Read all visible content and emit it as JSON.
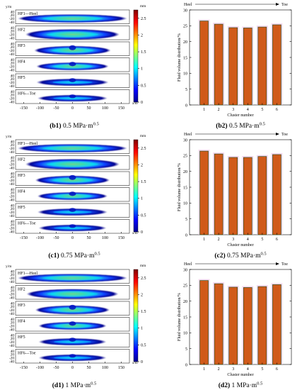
{
  "colors": {
    "bar_fill": "#d05a1a",
    "bar_edge": "#1a4a10",
    "bar_glow": "#f2c8e8",
    "colormap": [
      "#00008f",
      "#0000ff",
      "#00ffff",
      "#ffff00",
      "#ff0000",
      "#800000"
    ],
    "icons": [
      "colorbar",
      "arrow-right"
    ]
  },
  "rows": [
    {
      "map": {
        "caption_bold": "(b1)",
        "caption_text": " 0.5 MPa·m",
        "caption_sup": "0.5",
        "y_unit": "y/m",
        "x_unit": "x/m",
        "y_ticks": [
          "40",
          "20",
          "-20",
          "-40"
        ],
        "x_ticks": [
          "-150",
          "-100",
          "-50",
          "0",
          "50",
          "100",
          "150"
        ],
        "panels": [
          "HF1—Heel",
          "HF2",
          "HF3",
          "HF4",
          "HF5",
          "HF6—Toe"
        ],
        "colorbar_unit": "mm",
        "colorbar_ticks": [
          "2.5",
          "2",
          "1.5",
          "1",
          "0.5",
          "0"
        ]
      },
      "chart": {
        "caption_bold": "(b2)",
        "caption_text": " 0.5 MPa·m",
        "caption_sup": "0.5",
        "heel": "Heel",
        "toe": "Toe"
      }
    },
    {
      "map": {
        "caption_bold": "(c1)",
        "caption_text": " 0.75 MPa·m",
        "caption_sup": "0.5",
        "y_unit": "y/m",
        "x_unit": "x/m",
        "y_ticks": [
          "40",
          "20",
          "-20",
          "-40"
        ],
        "x_ticks": [
          "-150",
          "-100",
          "-50",
          "0",
          "50",
          "100",
          "150"
        ],
        "panels": [
          "HF1—Heel",
          "HF2",
          "HF3",
          "HF4",
          "HF5",
          "HF6—Toe"
        ],
        "colorbar_unit": "mm",
        "colorbar_ticks": [
          "2.5",
          "2",
          "1.5",
          "1",
          "0.5",
          "0"
        ]
      },
      "chart": {
        "caption_bold": "(c2)",
        "caption_text": " 0.75 MPa·m",
        "caption_sup": "0.5",
        "heel": "Heel",
        "toe": "Toe"
      }
    },
    {
      "map": {
        "caption_bold": "(d1)",
        "caption_text": " 1 MPa·m",
        "caption_sup": "0.5",
        "y_unit": "y/m",
        "x_unit": "x/m",
        "y_ticks": [
          "40",
          "20",
          "-20",
          "-40"
        ],
        "x_ticks": [
          "-150",
          "-100",
          "-50",
          "0",
          "50",
          "100",
          "150"
        ],
        "panels": [
          "HF1—Heel",
          "HF2",
          "HF3",
          "HF4",
          "HF5",
          "HF6—Toe"
        ],
        "colorbar_unit": "mm",
        "colorbar_ticks": [
          "2.5",
          "2",
          "1.5",
          "1",
          "0.5",
          "0"
        ]
      },
      "chart": {
        "caption_bold": "(d2)",
        "caption_text": " 1 MPa·m",
        "caption_sup": "0.5",
        "heel": "Heel",
        "toe": "Toe"
      }
    }
  ],
  "chart_data": [
    {
      "type": "bar",
      "categories": [
        "1",
        "2",
        "3",
        "4",
        "5",
        "6"
      ],
      "values": [
        26.5,
        25.5,
        24.4,
        24.3,
        24.6,
        25.3
      ],
      "xlabel": "Cluster number",
      "ylabel": "Fluid volume distribution/%",
      "ylim": [
        0,
        30
      ],
      "yticks": [
        "0",
        "5",
        "10",
        "15",
        "20",
        "25",
        "30"
      ],
      "grid": false
    },
    {
      "type": "bar",
      "categories": [
        "1",
        "2",
        "3",
        "4",
        "5",
        "6"
      ],
      "values": [
        26.4,
        25.5,
        24.4,
        24.4,
        24.7,
        25.3
      ],
      "xlabel": "Cluster number",
      "ylabel": "Fluid volume distribution/%",
      "ylim": [
        0,
        30
      ],
      "yticks": [
        "0",
        "5",
        "10",
        "15",
        "20",
        "25",
        "30"
      ],
      "grid": false
    },
    {
      "type": "bar",
      "categories": [
        "1",
        "2",
        "3",
        "4",
        "5",
        "6"
      ],
      "values": [
        26.5,
        25.5,
        24.4,
        24.3,
        24.6,
        25.2
      ],
      "xlabel": "Cluster number",
      "ylabel": "Fluid volume distribution/%",
      "ylim": [
        0,
        30
      ],
      "yticks": [
        "0",
        "5",
        "10",
        "15",
        "20",
        "25",
        "30"
      ],
      "grid": false
    }
  ]
}
